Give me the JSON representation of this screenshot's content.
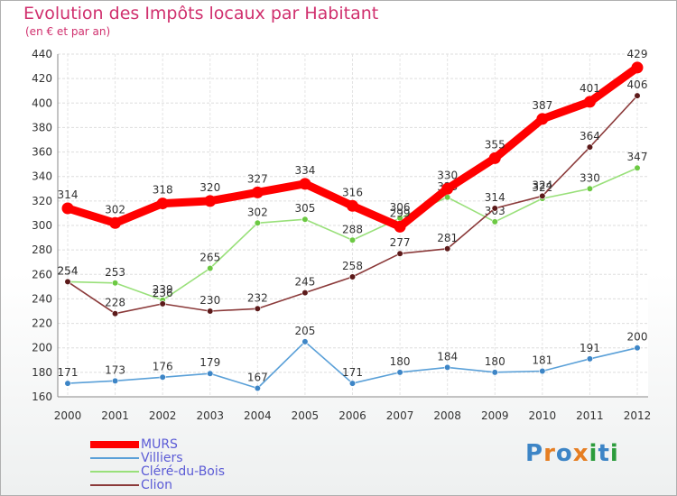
{
  "title": "Evolution des Impôts locaux par Habitant",
  "subtitle": "(en € et par an)",
  "logo_text": "Proxiti",
  "chart_data": {
    "type": "line",
    "title": "Evolution des Impôts locaux par Habitant",
    "subtitle": "(en € et par an)",
    "xlabel": "",
    "ylabel": "",
    "ylim": [
      160,
      440
    ],
    "yticks": [
      160,
      180,
      200,
      220,
      240,
      260,
      280,
      300,
      320,
      340,
      360,
      380,
      400,
      420,
      440
    ],
    "grid": true,
    "legend": "bottom-left",
    "x": [
      "2000",
      "2001",
      "2002",
      "2003",
      "2004",
      "2005",
      "2006",
      "2007",
      "2008",
      "2009",
      "2010",
      "2011",
      "2012"
    ],
    "series": [
      {
        "name": "Villiers",
        "color": "#5aa0d8",
        "point_color": "#3d85c6",
        "values": [
          171,
          173,
          176,
          179,
          167,
          205,
          171,
          180,
          184,
          180,
          181,
          191,
          200
        ]
      },
      {
        "name": "Cléré-du-Bois",
        "color": "#99e07a",
        "point_color": "#6cc943",
        "values": [
          254,
          253,
          239,
          265,
          302,
          305,
          288,
          306,
          323,
          303,
          322,
          330,
          347
        ]
      },
      {
        "name": "Clion",
        "color": "#8b3a3a",
        "point_color": "#5c1a1a",
        "values": [
          254,
          228,
          236,
          230,
          232,
          245,
          258,
          277,
          281,
          314,
          324,
          364,
          406
        ]
      },
      {
        "name": "MURS",
        "color": "#ff0000",
        "point_color": "#ff0000",
        "values": [
          314,
          302,
          318,
          320,
          327,
          334,
          316,
          299,
          330,
          355,
          387,
          401,
          429
        ]
      }
    ],
    "legend_order": [
      "MURS",
      "Villiers",
      "Cléré-du-Bois",
      "Clion"
    ]
  }
}
